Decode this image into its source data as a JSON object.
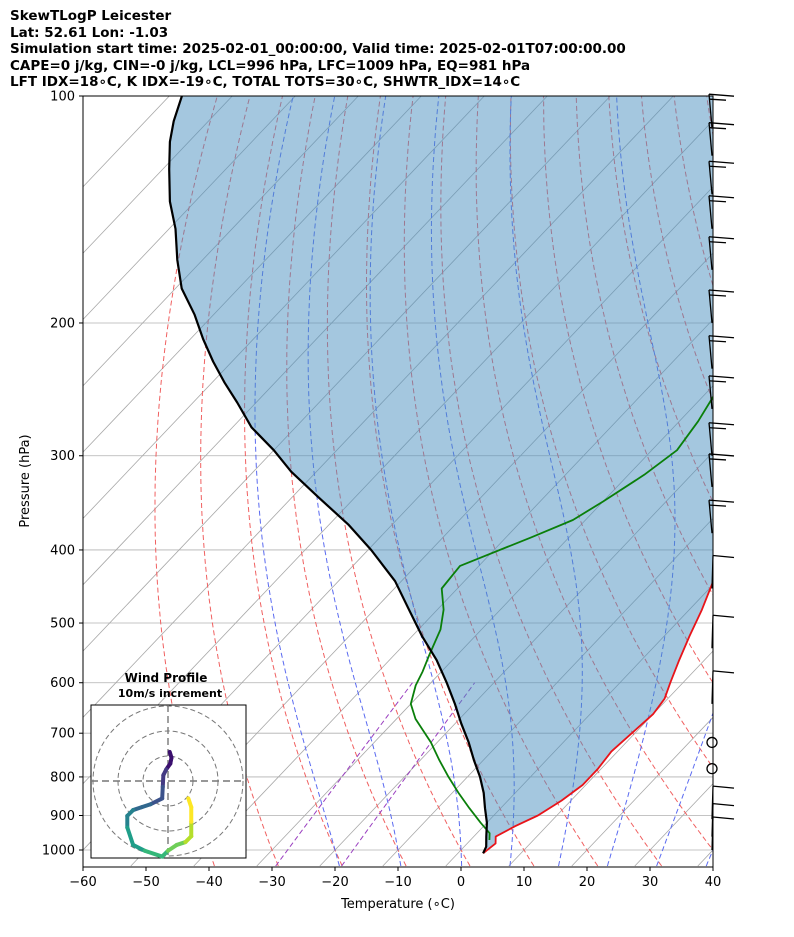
{
  "header": {
    "line1": "SkewTLogP Leicester",
    "line2": "Lat: 52.61   Lon: -1.03",
    "line3": "Simulation start time: 2025-02-01_00:00:00, Valid time: 2025-02-01T07:00:00.00",
    "line4": "CAPE=0 j/kg, CIN=-0 j/kg, LCL=996 hPa, LFC=1009 hPa, EQ=981 hPa",
    "line5": "LFT IDX=18∘C, K IDX=-19∘C, TOTAL TOTS=30∘C, SHWTR_IDX=14∘C"
  },
  "chart_data": {
    "type": "line",
    "subtype": "skew-t log-p",
    "xlabel": "Temperature (∘C)",
    "ylabel": "Pressure (hPa)",
    "xlim": [
      -60,
      40
    ],
    "ylim": [
      1040,
      100
    ],
    "x_ticks": [
      "−60",
      "−50",
      "−40",
      "−30",
      "−20",
      "−10",
      "0",
      "10",
      "20",
      "30",
      "40"
    ],
    "y_ticks": [
      "100",
      "200",
      "300",
      "400",
      "500",
      "600",
      "700",
      "800",
      "900",
      "1000"
    ],
    "y_scale": "log",
    "grid": true,
    "series": [
      {
        "role": "temperature",
        "color": "#e8141a",
        "points": [
          [
            4,
            1010
          ],
          [
            4.5,
            980
          ],
          [
            3.5,
            960
          ],
          [
            5,
            930
          ],
          [
            7,
            900
          ],
          [
            8.5,
            860
          ],
          [
            9.5,
            820
          ],
          [
            9.5,
            780
          ],
          [
            9,
            740
          ],
          [
            9.5,
            700
          ],
          [
            10,
            660
          ],
          [
            9.5,
            630
          ],
          [
            8,
            600
          ],
          [
            6,
            560
          ],
          [
            4,
            520
          ],
          [
            2,
            480
          ],
          [
            -0.5,
            440
          ],
          [
            -3,
            400
          ],
          [
            -5.5,
            360
          ],
          [
            -8,
            330
          ],
          [
            -10,
            300
          ],
          [
            -12.5,
            270
          ],
          [
            -14.5,
            245
          ],
          [
            -16,
            230
          ],
          [
            -17,
            215
          ],
          [
            -17.5,
            205
          ],
          [
            -18,
            195
          ],
          [
            -19,
            180
          ],
          [
            -21,
            165
          ],
          [
            -24.5,
            150
          ],
          [
            -27.5,
            138
          ],
          [
            -31,
            125
          ],
          [
            -34,
            115
          ],
          [
            -35.5,
            108
          ],
          [
            -38,
            100
          ]
        ]
      },
      {
        "role": "dewpoint",
        "color": "#0a7f0a",
        "points": [
          [
            3,
            970
          ],
          [
            2,
            950
          ],
          [
            -1,
            920
          ],
          [
            -5,
            880
          ],
          [
            -9,
            840
          ],
          [
            -13,
            800
          ],
          [
            -17,
            760
          ],
          [
            -21,
            720
          ],
          [
            -27,
            670
          ],
          [
            -30,
            640
          ],
          [
            -32,
            605
          ],
          [
            -33,
            580
          ],
          [
            -34.5,
            550
          ],
          [
            -36.5,
            510
          ],
          [
            -39,
            480
          ],
          [
            -42.5,
            450
          ],
          [
            -43,
            420
          ],
          [
            -36,
            385
          ],
          [
            -32,
            365
          ],
          [
            -30,
            345
          ],
          [
            -27.5,
            318
          ],
          [
            -26,
            295
          ],
          [
            -27,
            270
          ],
          [
            -28.5,
            248
          ],
          [
            -30,
            232
          ],
          [
            -31.5,
            215
          ],
          [
            -32.5,
            200
          ],
          [
            -33.5,
            185
          ],
          [
            -36,
            172
          ],
          [
            -35,
            158
          ],
          [
            -37,
            140
          ],
          [
            -41.5,
            125
          ],
          [
            -43,
            115
          ],
          [
            -43.5,
            108
          ],
          [
            -44,
            100
          ]
        ]
      },
      {
        "role": "parcel",
        "color": "#000000",
        "points": [
          [
            4,
            1010
          ],
          [
            3.5,
            990
          ],
          [
            2,
            960
          ],
          [
            0,
            920
          ],
          [
            -2.5,
            880
          ],
          [
            -5,
            840
          ],
          [
            -8,
            800
          ],
          [
            -11.5,
            760
          ],
          [
            -15,
            720
          ],
          [
            -19,
            680
          ],
          [
            -23,
            640
          ],
          [
            -27.5,
            600
          ],
          [
            -32.5,
            560
          ],
          [
            -38.5,
            520
          ],
          [
            -44.5,
            480
          ],
          [
            -51,
            440
          ],
          [
            -59.5,
            400
          ],
          [
            -67,
            370
          ],
          [
            -76,
            340
          ],
          [
            -84,
            315
          ],
          [
            -90,
            295
          ],
          [
            -97,
            275
          ],
          [
            -103,
            255
          ],
          [
            -108,
            240
          ],
          [
            -113,
            225
          ],
          [
            -118,
            210
          ],
          [
            -123,
            195
          ],
          [
            -129,
            180
          ],
          [
            -134,
            165
          ],
          [
            -139,
            150
          ],
          [
            -144,
            138
          ],
          [
            -149,
            125
          ],
          [
            -153,
            115
          ],
          [
            -155.5,
            108
          ],
          [
            -158,
            100
          ]
        ]
      }
    ],
    "wind_barbs": [
      {
        "p": 1000,
        "symbol": "barb"
      },
      {
        "p": 960,
        "symbol": "barb"
      },
      {
        "p": 910,
        "symbol": "barb"
      },
      {
        "p": 780,
        "symbol": "calm"
      },
      {
        "p": 720,
        "symbol": "calm"
      },
      {
        "p": 640,
        "symbol": "barb"
      },
      {
        "p": 540,
        "symbol": "barb"
      },
      {
        "p": 450,
        "symbol": "barb"
      },
      {
        "p": 380,
        "symbol": "barb"
      },
      {
        "p": 330,
        "symbol": "barb"
      },
      {
        "p": 300,
        "symbol": "barb"
      },
      {
        "p": 260,
        "symbol": "barb"
      },
      {
        "p": 230,
        "symbol": "barb"
      },
      {
        "p": 200,
        "symbol": "barb"
      },
      {
        "p": 170,
        "symbol": "barb"
      },
      {
        "p": 150,
        "symbol": "barb"
      },
      {
        "p": 135,
        "symbol": "barb"
      },
      {
        "p": 120,
        "symbol": "barb"
      },
      {
        "p": 110,
        "symbol": "barb"
      }
    ],
    "hodograph": {
      "title": "Wind Profile",
      "subtitle": "10m/s increment",
      "rings": 3,
      "points": [
        [
          0.3,
          5
        ],
        [
          0.6,
          4
        ],
        [
          0.4,
          3
        ],
        [
          -0.3,
          2
        ],
        [
          -0.8,
          1
        ],
        [
          -0.9,
          -1
        ],
        [
          -1,
          -3
        ],
        [
          -3,
          -4
        ],
        [
          -4.5,
          -4.5
        ],
        [
          -6,
          -5
        ],
        [
          -7,
          -6
        ],
        [
          -7,
          -8
        ],
        [
          -6,
          -11
        ],
        [
          -4,
          -12
        ],
        [
          -1,
          -13
        ],
        [
          0,
          -12
        ],
        [
          1.5,
          -11
        ],
        [
          3,
          -10.5
        ],
        [
          4,
          -9.5
        ],
        [
          4,
          -7
        ],
        [
          4,
          -4.5
        ],
        [
          3.5,
          -3
        ]
      ]
    }
  }
}
